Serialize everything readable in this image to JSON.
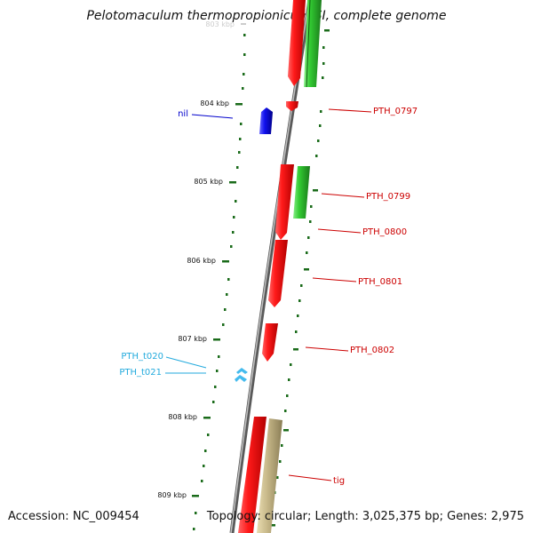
{
  "title": "Pelotomaculum thermopropionicum SI, complete genome",
  "footer": {
    "accession": "Accession: NC_009454",
    "stats": "Topology: circular; Length: 3,025,375 bp; Genes: 2,975"
  },
  "scale": {
    "ticks": [
      "803 kbp",
      "804 kbp",
      "805 kbp",
      "806 kbp",
      "807 kbp",
      "808 kbp",
      "809 kbp"
    ]
  },
  "genes": [
    {
      "label": "nil",
      "color": "#0000cc"
    },
    {
      "label": "PTH_0797",
      "color": "#cc0000"
    },
    {
      "label": "PTH_0799",
      "color": "#cc0000"
    },
    {
      "label": "PTH_0800",
      "color": "#cc0000"
    },
    {
      "label": "PTH_0801",
      "color": "#cc0000"
    },
    {
      "label": "PTH_0802",
      "color": "#cc0000"
    },
    {
      "label": "PTH_t020",
      "color": "#22aadd"
    },
    {
      "label": "PTH_t021",
      "color": "#22aadd"
    },
    {
      "label": "tig",
      "color": "#cc0000"
    }
  ],
  "colors": {
    "backbone": "#888888",
    "scale_ticks": "#1a6b1a",
    "forward_gene": "#ff0000",
    "reverse_gene": "#33cc33",
    "rna_gene": "#44bbee",
    "other_gene": "#c8b98a",
    "misc_gene": "#0000ff"
  }
}
